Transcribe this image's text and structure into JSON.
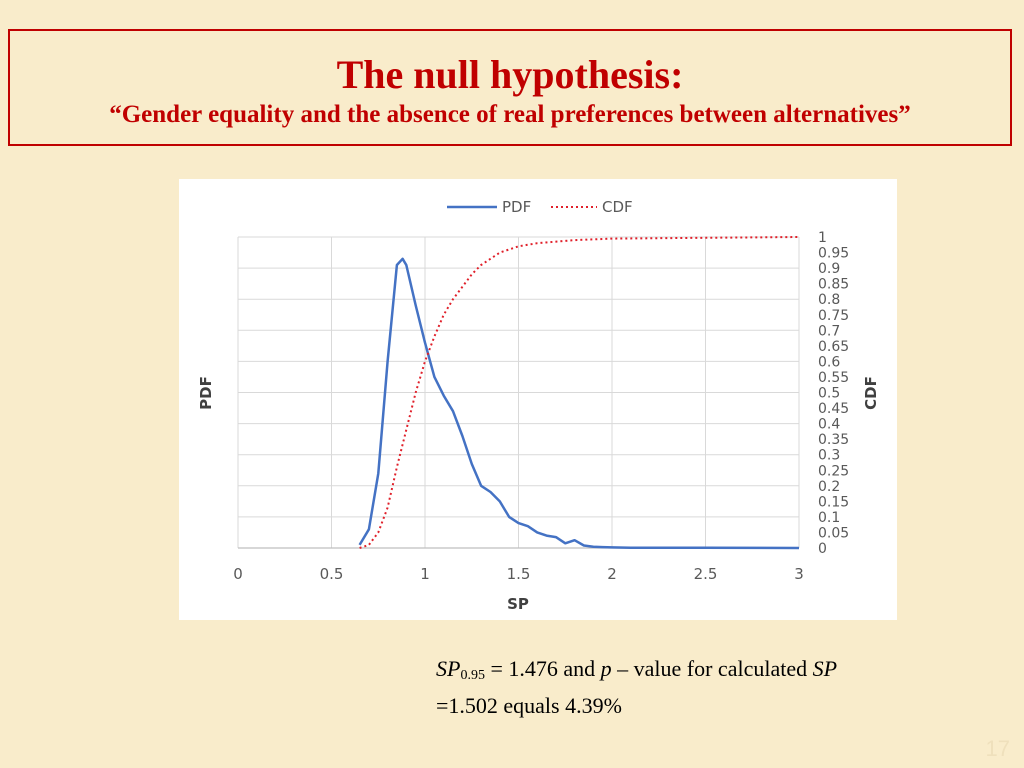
{
  "slide": {
    "title": "The null hypothesis:",
    "subtitle": "“Gender equality and the absence of real preferences between alternatives”",
    "page_number": "17"
  },
  "caption": {
    "sp_symbol": "SP",
    "sp_subscript": "0.95",
    "sp_value": " = 1.476 ",
    "and_text": "  and ",
    "p_symbol": "p",
    "p_rest": " – value for calculated ",
    "sp_symbol_2": "SP",
    "line2": "=1.502 equals 4.39%"
  },
  "chart_data": {
    "type": "line",
    "xlabel": "SP",
    "ylabel": "PDF",
    "y2label": "CDF",
    "xlim": [
      0,
      3
    ],
    "ylim": [
      0,
      1
    ],
    "x_ticks": [
      "0",
      "0.5",
      "1",
      "1.5",
      "2",
      "2.5",
      "3"
    ],
    "x_tick_values": [
      0,
      0.5,
      1,
      1.5,
      2,
      2.5,
      3
    ],
    "y_ticks": [
      "0",
      "0.05",
      "0.1",
      "0.15",
      "0.2",
      "0.25",
      "0.3",
      "0.35",
      "0.4",
      "0.45",
      "0.5",
      "0.55",
      "0.6",
      "0.65",
      "0.7",
      "0.75",
      "0.8",
      "0.85",
      "0.9",
      "0.95",
      "1"
    ],
    "y_tick_values": [
      0,
      0.05,
      0.1,
      0.15,
      0.2,
      0.25,
      0.3,
      0.35,
      0.4,
      0.45,
      0.5,
      0.55,
      0.6,
      0.65,
      0.7,
      0.75,
      0.8,
      0.85,
      0.9,
      0.95,
      1
    ],
    "legend_position": "top-center",
    "series": [
      {
        "name": "PDF",
        "color": "#4472c4",
        "style": "solid",
        "points": [
          [
            0.65,
            0.01
          ],
          [
            0.7,
            0.06
          ],
          [
            0.75,
            0.24
          ],
          [
            0.8,
            0.6
          ],
          [
            0.85,
            0.91
          ],
          [
            0.88,
            0.93
          ],
          [
            0.9,
            0.91
          ],
          [
            0.95,
            0.78
          ],
          [
            1.0,
            0.66
          ],
          [
            1.05,
            0.55
          ],
          [
            1.1,
            0.49
          ],
          [
            1.15,
            0.44
          ],
          [
            1.2,
            0.36
          ],
          [
            1.25,
            0.27
          ],
          [
            1.3,
            0.2
          ],
          [
            1.35,
            0.18
          ],
          [
            1.4,
            0.15
          ],
          [
            1.45,
            0.1
          ],
          [
            1.5,
            0.08
          ],
          [
            1.55,
            0.07
          ],
          [
            1.6,
            0.05
          ],
          [
            1.65,
            0.04
          ],
          [
            1.7,
            0.035
          ],
          [
            1.75,
            0.015
          ],
          [
            1.8,
            0.025
          ],
          [
            1.85,
            0.008
          ],
          [
            1.9,
            0.004
          ],
          [
            1.95,
            0.003
          ],
          [
            2.0,
            0.002
          ],
          [
            2.1,
            0.001
          ],
          [
            2.5,
            0.0005
          ],
          [
            3.0,
            0.0
          ]
        ]
      },
      {
        "name": "CDF",
        "color": "#e0202a",
        "style": "dotted",
        "points": [
          [
            0.65,
            0.0
          ],
          [
            0.7,
            0.01
          ],
          [
            0.75,
            0.05
          ],
          [
            0.8,
            0.13
          ],
          [
            0.85,
            0.26
          ],
          [
            0.9,
            0.38
          ],
          [
            0.95,
            0.5
          ],
          [
            1.0,
            0.6
          ],
          [
            1.05,
            0.68
          ],
          [
            1.1,
            0.75
          ],
          [
            1.15,
            0.8
          ],
          [
            1.2,
            0.84
          ],
          [
            1.25,
            0.88
          ],
          [
            1.3,
            0.91
          ],
          [
            1.35,
            0.93
          ],
          [
            1.4,
            0.95
          ],
          [
            1.5,
            0.97
          ],
          [
            1.6,
            0.98
          ],
          [
            1.8,
            0.99
          ],
          [
            2.0,
            0.995
          ],
          [
            3.0,
            1.0
          ]
        ]
      }
    ]
  }
}
